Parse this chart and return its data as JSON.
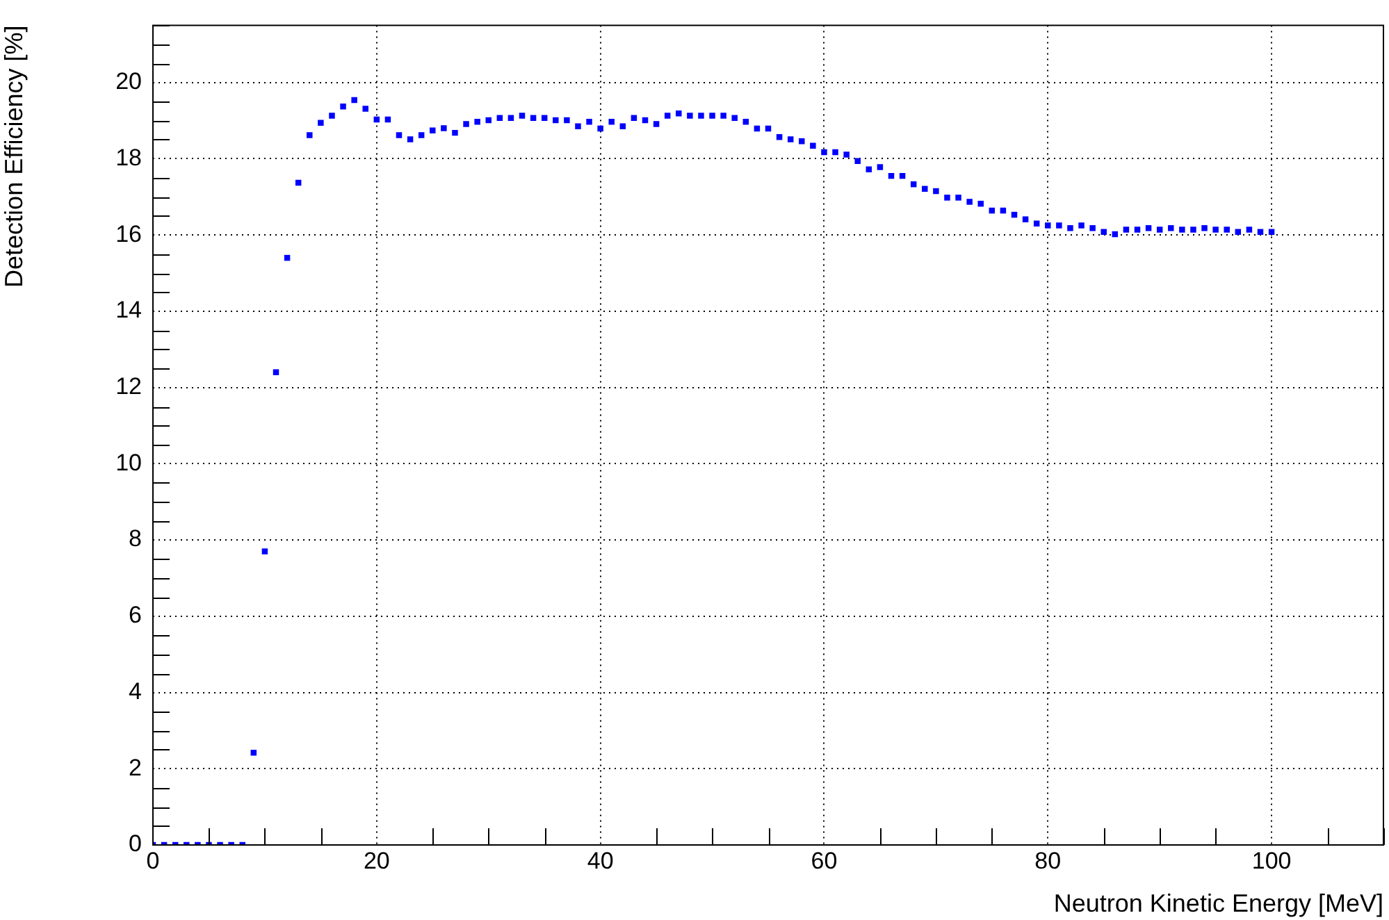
{
  "chart_data": {
    "type": "scatter",
    "xlabel": "Neutron Kinetic Energy [MeV]",
    "ylabel": "Detection Efficiency [%]",
    "x": [
      0,
      1,
      2,
      3,
      4,
      5,
      6,
      7,
      8,
      9,
      10,
      11,
      12,
      13,
      14,
      15,
      16,
      17,
      18,
      19,
      20,
      21,
      22,
      23,
      24,
      25,
      26,
      27,
      28,
      29,
      30,
      31,
      32,
      33,
      34,
      35,
      36,
      37,
      38,
      39,
      40,
      41,
      42,
      43,
      44,
      45,
      46,
      47,
      48,
      49,
      50,
      51,
      52,
      53,
      54,
      55,
      56,
      57,
      58,
      59,
      60,
      61,
      62,
      63,
      64,
      65,
      66,
      67,
      68,
      69,
      70,
      71,
      72,
      73,
      74,
      75,
      76,
      77,
      78,
      79,
      80,
      81,
      82,
      83,
      84,
      85,
      86,
      87,
      88,
      89,
      90,
      91,
      92,
      93,
      94,
      95,
      96,
      97,
      98,
      99,
      100
    ],
    "series": [
      {
        "color": "#0000ff",
        "values": [
          0,
          0,
          0,
          0,
          0,
          0,
          0,
          0,
          0,
          2.42,
          7.7,
          12.4,
          15.4,
          17.37,
          18.62,
          18.94,
          19.13,
          19.37,
          19.54,
          19.31,
          19.03,
          19.03,
          18.62,
          18.51,
          18.62,
          18.74,
          18.8,
          18.68,
          18.91,
          18.97,
          19.01,
          19.07,
          19.07,
          19.13,
          19.07,
          19.07,
          19.01,
          19.01,
          18.85,
          18.97,
          18.79,
          18.97,
          18.85,
          19.07,
          19.01,
          18.91,
          19.13,
          19.19,
          19.13,
          19.13,
          19.13,
          19.13,
          19.07,
          18.97,
          18.79,
          18.79,
          18.57,
          18.51,
          18.46,
          18.34,
          18.17,
          18.17,
          18.11,
          17.94,
          17.72,
          17.78,
          17.55,
          17.55,
          17.33,
          17.21,
          17.15,
          16.98,
          16.98,
          16.87,
          16.82,
          16.64,
          16.64,
          16.53,
          16.41,
          16.3,
          16.25,
          16.25,
          16.18,
          16.25,
          16.18,
          16.08,
          16.02,
          16.14,
          16.14,
          16.18,
          16.14,
          16.18,
          16.14,
          16.14,
          16.18,
          16.14,
          16.14,
          16.08,
          16.14,
          16.08,
          16.08
        ]
      }
    ],
    "xlim": [
      0,
      110
    ],
    "ylim": [
      0,
      21.5
    ],
    "xticks": [
      0,
      20,
      40,
      60,
      80,
      100
    ],
    "yticks": [
      0,
      2,
      4,
      6,
      8,
      10,
      12,
      14,
      16,
      18,
      20
    ],
    "grid": true,
    "marker": "square"
  }
}
